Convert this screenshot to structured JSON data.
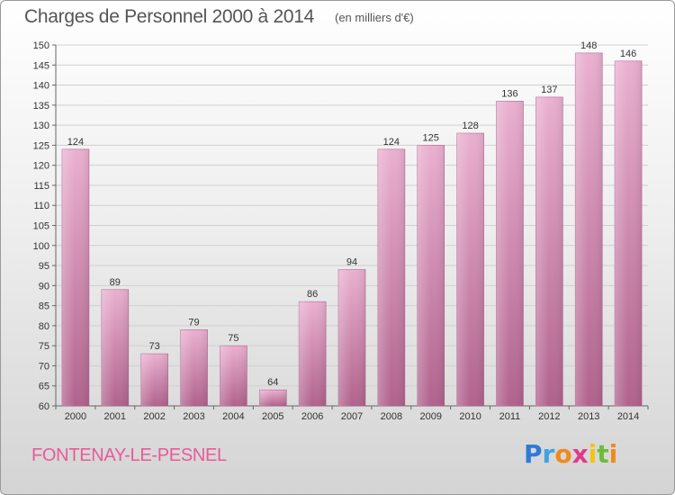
{
  "header": {
    "title": "Charges de Personnel 2000 à 2014",
    "unit_note": "(en milliers d'€)"
  },
  "footer": {
    "place": "FONTENAY-LE-PESNEL",
    "logo_letters": [
      "P",
      "r",
      "o",
      "x",
      "i",
      "t",
      "i"
    ],
    "logo_colors": [
      "#2e7bd6",
      "#3fa3e0",
      "#f08a1c",
      "#e03a8c",
      "#f2c414",
      "#6cbd3a",
      "#f08a1c"
    ]
  },
  "chart_data": {
    "type": "bar",
    "title": "Charges de Personnel 2000 à 2014",
    "subtitle": "(en milliers d'€)",
    "xlabel": "",
    "ylabel": "",
    "categories": [
      "2000",
      "2001",
      "2002",
      "2003",
      "2004",
      "2005",
      "2006",
      "2007",
      "2008",
      "2009",
      "2010",
      "2011",
      "2012",
      "2013",
      "2014"
    ],
    "values": [
      124,
      89,
      73,
      79,
      75,
      64,
      86,
      94,
      124,
      125,
      128,
      136,
      137,
      148,
      146
    ],
    "ylim": [
      60,
      150
    ],
    "yticks": [
      60,
      65,
      70,
      75,
      80,
      85,
      90,
      95,
      100,
      105,
      110,
      115,
      120,
      125,
      130,
      135,
      140,
      145,
      150
    ],
    "grid": true,
    "bar_color": "#d47aa8",
    "bar_color_light": "#eab0d0"
  }
}
